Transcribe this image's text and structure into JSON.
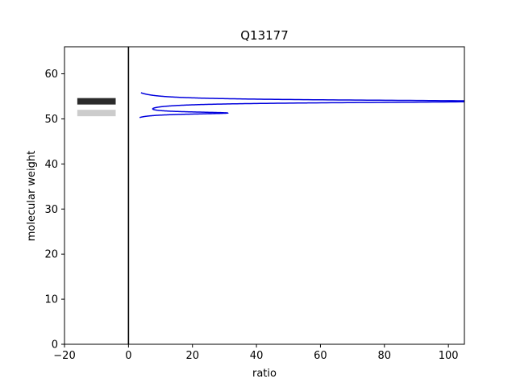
{
  "chart_data": {
    "type": "line",
    "title": "Q13177",
    "xlabel": "ratio",
    "ylabel": "molecular weight",
    "xlim": [
      -20,
      105
    ],
    "ylim": [
      0,
      66
    ],
    "x_ticks": [
      -20,
      0,
      20,
      40,
      60,
      80,
      100
    ],
    "y_ticks": [
      0,
      10,
      20,
      30,
      40,
      50,
      60
    ],
    "x_tick_labels": [
      "−20",
      "0",
      "20",
      "40",
      "60",
      "80",
      "100"
    ],
    "y_tick_labels": [
      "0",
      "10",
      "20",
      "30",
      "40",
      "50",
      "60"
    ],
    "grid": false,
    "gel_bands": [
      {
        "mw": 53.9,
        "x_start": -16,
        "x_end": -4,
        "color": "#2b2b2b"
      },
      {
        "mw": 51.3,
        "x_start": -16,
        "x_end": -4,
        "color": "#cccccc"
      }
    ],
    "reference_line": {
      "x": 0,
      "color": "#000000"
    },
    "series": [
      {
        "color": "#0000dd",
        "peaks": [
          {
            "center": 53.9,
            "height": 115,
            "width": 0.35
          },
          {
            "center": 51.3,
            "height": 29,
            "width": 0.3
          }
        ],
        "y_range": [
          50.3,
          55.8
        ]
      }
    ]
  }
}
